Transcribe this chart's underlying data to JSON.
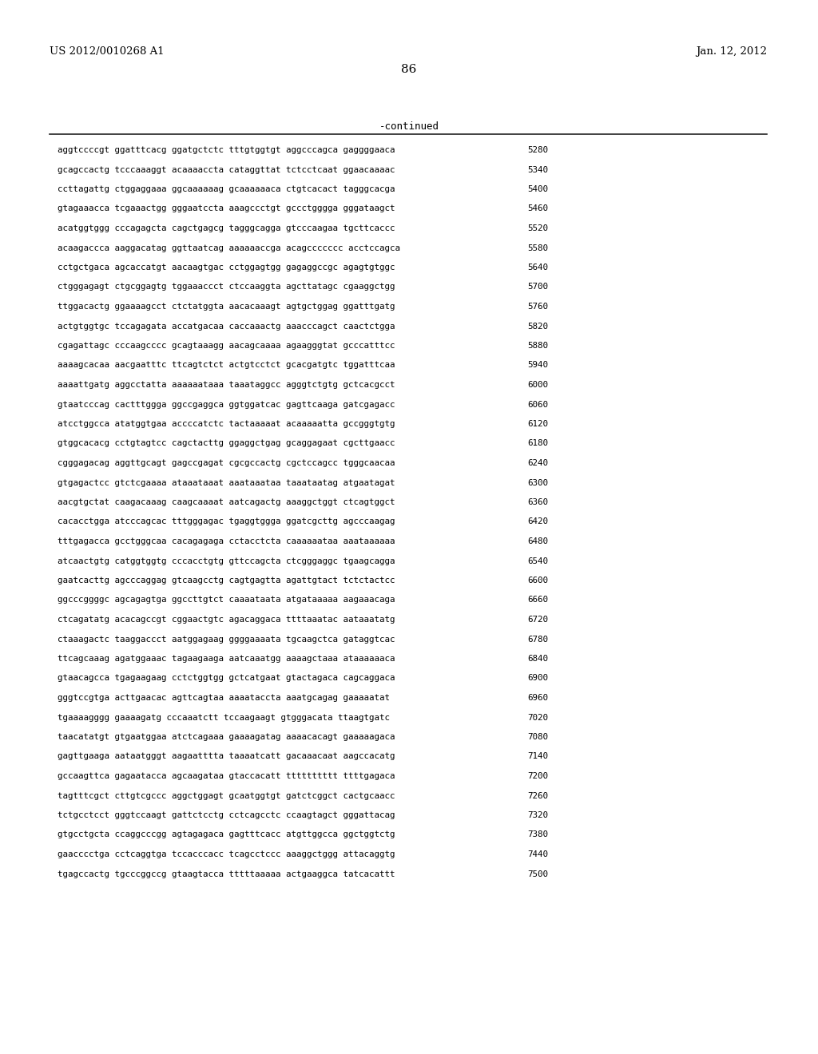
{
  "header_left": "US 2012/0010268 A1",
  "header_right": "Jan. 12, 2012",
  "page_number": "86",
  "continued_label": "-continued",
  "background_color": "#ffffff",
  "text_color": "#000000",
  "sequence_lines": [
    [
      "aggtccccgt ggatttcacg ggatgctctc tttgtggtgt aggcccagca gaggggaaca",
      "5280"
    ],
    [
      "gcagccactg tcccaaaggt acaaaaccta cataggttat tctcctcaat ggaacaaaac",
      "5340"
    ],
    [
      "ccttagattg ctggaggaaa ggcaaaaaag gcaaaaaaca ctgtcacact tagggcacga",
      "5400"
    ],
    [
      "gtagaaacca tcgaaactgg gggaatccta aaagccctgt gccctgggga gggataagct",
      "5460"
    ],
    [
      "acatggtggg cccagagcta cagctgagcg tagggcagga gtcccaagaa tgcttcaccc",
      "5520"
    ],
    [
      "acaagaccca aaggacatag ggttaatcag aaaaaaccga acagccccccc acctccagca",
      "5580"
    ],
    [
      "cctgctgaca agcaccatgt aacaagtgac cctggagtgg gagaggccgc agagtgtggc",
      "5640"
    ],
    [
      "ctgggagagt ctgcggagtg tggaaaccct ctccaaggta agcttatagc cgaaggctgg",
      "5700"
    ],
    [
      "ttggacactg ggaaaagcct ctctatggta aacacaaagt agtgctggag ggatttgatg",
      "5760"
    ],
    [
      "actgtggtgc tccagagata accatgacaa caccaaactg aaacccagct caactctgga",
      "5820"
    ],
    [
      "cgagattagc cccaagcccc gcagtaaagg aacagcaaaa agaagggtat gcccatttcc",
      "5880"
    ],
    [
      "aaaagcacaa aacgaatttc ttcagtctct actgtcctct gcacgatgtc tggatttcaa",
      "5940"
    ],
    [
      "aaaattgatg aggcctatta aaaaaataaa taaataggcc agggtctgtg gctcacgcct",
      "6000"
    ],
    [
      "gtaatcccag cactttggga ggccgaggca ggtggatcac gagttcaaga gatcgagacc",
      "6060"
    ],
    [
      "atcctggcca atatggtgaa accccatctc tactaaaaat acaaaaatta gccgggtgtg",
      "6120"
    ],
    [
      "gtggcacacg cctgtagtcc cagctacttg ggaggctgag gcaggagaat cgcttgaacc",
      "6180"
    ],
    [
      "cgggagacag aggttgcagt gagccgagat cgcgccactg cgctccagcc tgggcaacaa",
      "6240"
    ],
    [
      "gtgagactcc gtctcgaaaa ataaataaat aaataaataa taaataatag atgaatagat",
      "6300"
    ],
    [
      "aacgtgctat caagacaaag caagcaaaat aatcagactg aaaggctggt ctcagtggct",
      "6360"
    ],
    [
      "cacacctgga atcccagcac tttgggagac tgaggtggga ggatcgcttg agcccaagag",
      "6420"
    ],
    [
      "tttgagacca gcctgggcaa cacagagaga cctacctcta caaaaaataa aaataaaaaa",
      "6480"
    ],
    [
      "atcaactgtg catggtggtg cccacctgtg gttccagcta ctcgggaggc tgaagcagga",
      "6540"
    ],
    [
      "gaatcacttg agcccaggag gtcaagcctg cagtgagtta agattgtact tctctactcc",
      "6600"
    ],
    [
      "ggcccggggc agcagagtga ggccttgtct caaaataata atgataaaaa aagaaacaga",
      "6660"
    ],
    [
      "ctcagatatg acacagccgt cggaactgtc agacaggaca ttttaaatac aataaatatg",
      "6720"
    ],
    [
      "ctaaagactc taaggaccct aatggagaag ggggaaaata tgcaagctca gataggtcac",
      "6780"
    ],
    [
      "ttcagcaaag agatggaaac tagaagaaga aatcaaatgg aaaagctaaa ataaaaaaca",
      "6840"
    ],
    [
      "gtaacagcca tgagaagaag cctctggtgg gctcatgaat gtactagaca cagcaggaca",
      "6900"
    ],
    [
      "gggtccgtga acttgaacac agttcagtaa aaaataccta aaatgcagag gaaaaatat",
      "6960"
    ],
    [
      "tgaaaagggg gaaaagatg cccaaatctt tccaagaagt gtgggacata ttaagtgatc",
      "7020"
    ],
    [
      "taacatatgt gtgaatggaa atctcagaaa gaaaagatag aaaacacagt gaaaaagaca",
      "7080"
    ],
    [
      "gagttgaaga aataatgggt aagaatttta taaaatcatt gacaaacaat aagccacatg",
      "7140"
    ],
    [
      "gccaagttca gagaatacca agcaagataa gtaccacatt tttttttttt ttttgagaca",
      "7200"
    ],
    [
      "tagtttcgct cttgtcgccc aggctggagt gcaatggtgt gatctcggct cactgcaacc",
      "7260"
    ],
    [
      "tctgcctcct gggtccaagt gattctcctg cctcagcctc ccaagtagct gggattacag",
      "7320"
    ],
    [
      "gtgcctgcta ccaggcccgg agtagagaca gagtttcacc atgttggcca ggctggtctg",
      "7380"
    ],
    [
      "gaacccctga cctcaggtga tccacccacc tcagcctccc aaaggctggg attacaggtg",
      "7440"
    ],
    [
      "tgagccactg tgcccggccg gtaagtacca tttttaaaaa actgaaggca tatcacattt",
      "7500"
    ]
  ]
}
